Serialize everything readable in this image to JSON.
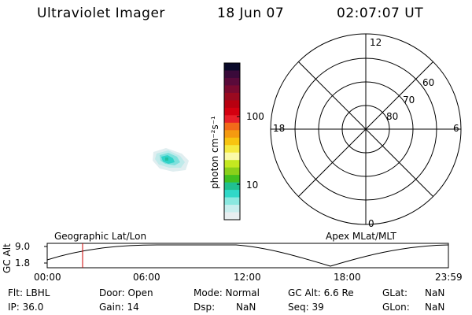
{
  "header": {
    "title": "Ultraviolet Imager",
    "date": "18 Jun 07",
    "time": "02:07:07 UT"
  },
  "colorbar": {
    "unit_label": "photon cm⁻²s⁻¹",
    "tick_labels": [
      "100",
      "10"
    ],
    "colors": [
      "#0a0a2a",
      "#3a0a3a",
      "#5a0a3a",
      "#7a0a30",
      "#9a0a20",
      "#b80010",
      "#d40010",
      "#e8202a",
      "#f26a1a",
      "#f49a10",
      "#f7c410",
      "#f4ea40",
      "#fafaa8",
      "#c4e820",
      "#8ad01a",
      "#40c020",
      "#20c090",
      "#30d8c8",
      "#8ae8e0",
      "#c8eeee",
      "#e8eef0"
    ]
  },
  "polar_plot": {
    "mlt_labels": [
      "12",
      "18",
      "6",
      "0"
    ],
    "lat_labels": [
      "60",
      "70",
      "80"
    ]
  },
  "timeline": {
    "left_label": "Geographic Lat/Lon",
    "right_label": "Apex MLat/MLT",
    "y_axis_label": "GC Alt",
    "y_ticks": [
      "9.0",
      "1.8"
    ],
    "x_ticks": [
      "00:00",
      "06:00",
      "12:00",
      "18:00",
      "23:59"
    ],
    "marker_color": "#cc0000"
  },
  "status": {
    "flt": "Flt: LBHL",
    "door": "Door: Open",
    "mode": "Mode: Normal",
    "gc_alt": "GC Alt: 6.6 Re",
    "glat": "GLat:",
    "glat_val": "NaN",
    "ip": "IP: 36.0",
    "gain": "Gain: 14",
    "dsp": "Dsp:",
    "dsp_val": "NaN",
    "seq": "Seq: 39",
    "glon": "GLon:",
    "glon_val": "NaN"
  }
}
